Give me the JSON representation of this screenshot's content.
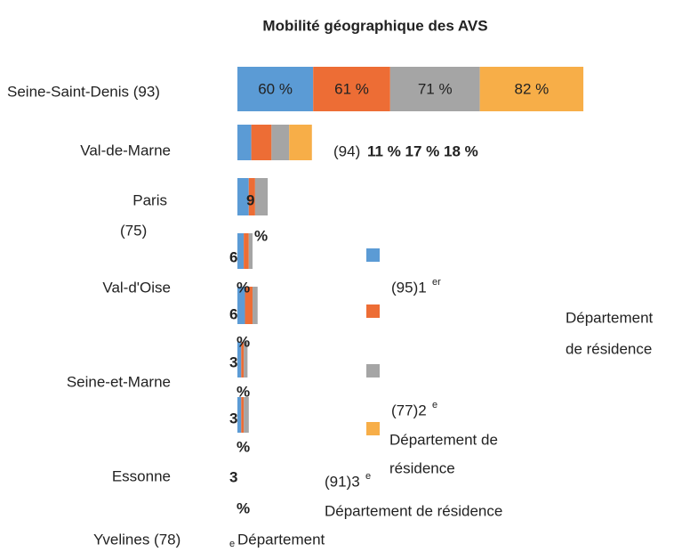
{
  "chart_data": {
    "type": "bar",
    "orientation": "horizontal",
    "stacked": true,
    "title": "Mobilité géographique des AVS",
    "categories": [
      "Seine-Saint-Denis (93)",
      "Val-de-Marne",
      "Paris",
      "Val-d'Oise",
      "Seine-et-Marne",
      "Essonne",
      "Yvelines (78)"
    ],
    "series": [
      {
        "color": "#5b9bd5",
        "values": [
          60,
          11,
          9,
          5,
          6,
          3,
          3
        ],
        "value_labels": [
          "60 %",
          null,
          null,
          null,
          null,
          null,
          null
        ]
      },
      {
        "color": "#ed6d35",
        "values": [
          61,
          16,
          5,
          4,
          6,
          2,
          2
        ],
        "value_labels": [
          "61 %",
          null,
          null,
          null,
          null,
          null,
          null
        ]
      },
      {
        "color": "#a5a5a5",
        "values": [
          71,
          14,
          10,
          3,
          4,
          3,
          4
        ],
        "value_labels": [
          "71 %",
          null,
          null,
          null,
          null,
          null,
          null
        ]
      },
      {
        "color": "#f7ae48",
        "values": [
          82,
          18,
          0,
          0,
          0,
          0,
          0
        ],
        "value_labels": [
          "82 %",
          null,
          null,
          null,
          null,
          null,
          null
        ]
      }
    ],
    "annotations": [
      "(94)",
      "11 % 17 % 18 %",
      "9",
      "%",
      "6",
      "%",
      "6",
      "%",
      "3",
      "%",
      "3",
      "%",
      "3",
      "%",
      "(95)1",
      "er",
      "Département",
      "de résidence",
      "(77)2",
      "e",
      "Département de",
      "résidence",
      "(91)3",
      "e",
      "Département de résidence",
      "(75)",
      "e",
      "Département"
    ]
  }
}
